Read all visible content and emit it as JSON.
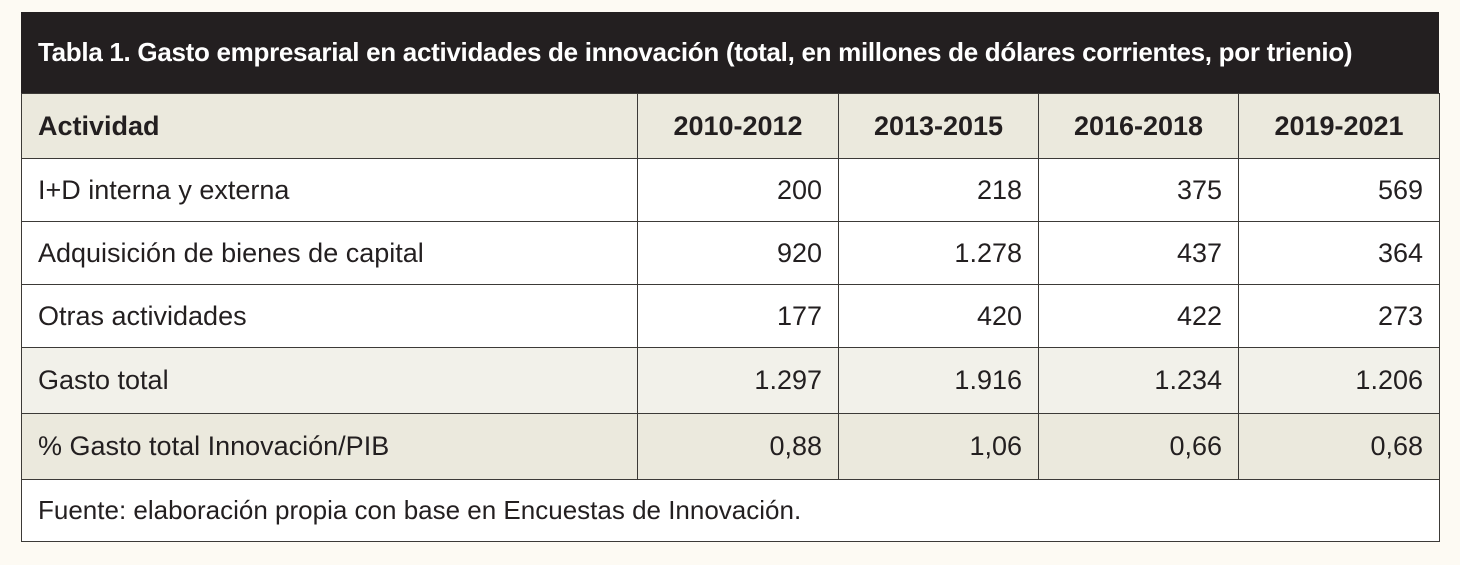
{
  "table": {
    "title": "Tabla 1. Gasto empresarial en actividades de innovación (total, en millones de dólares corrientes, por trienio)",
    "headers": [
      "Actividad",
      "2010-2012",
      "2013-2015",
      "2016-2018",
      "2019-2021"
    ],
    "rows": [
      {
        "label": "I+D interna y externa",
        "values": [
          "200",
          "218",
          "375",
          "569"
        ]
      },
      {
        "label": "Adquisición de bienes de capital",
        "values": [
          "920",
          "1.278",
          "437",
          "364"
        ]
      },
      {
        "label": "Otras actividades",
        "values": [
          "177",
          "420",
          "422",
          "273"
        ]
      },
      {
        "label": "Gasto total",
        "values": [
          "1.297",
          "1.916",
          "1.234",
          "1.206"
        ]
      },
      {
        "label": "% Gasto total Innovación/PIB",
        "values": [
          "0,88",
          "1,06",
          "0,66",
          "0,68"
        ]
      }
    ],
    "source": "Fuente: elaboración propia con base en Encuestas de Innovación.",
    "colors": {
      "title_background": "#231f20",
      "header_background": "#ebe9dd",
      "page_background": "#fdfaf3"
    }
  }
}
